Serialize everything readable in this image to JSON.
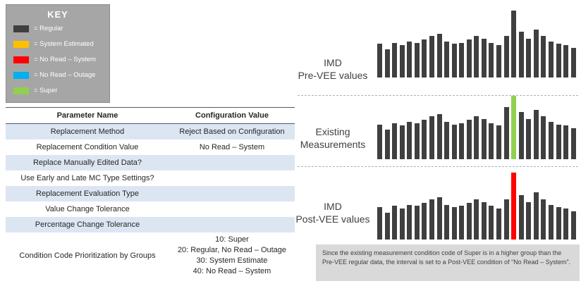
{
  "key": {
    "title": "KEY",
    "items": [
      {
        "label": "= Regular",
        "color": "#3f3f3f"
      },
      {
        "label": "= System Estimated",
        "color": "#ffc000"
      },
      {
        "label": "= No Read – System",
        "color": "#ff0000"
      },
      {
        "label": "= No Read – Outage",
        "color": "#00b0f0"
      },
      {
        "label": "= Super",
        "color": "#92d050"
      }
    ]
  },
  "table": {
    "headers": [
      "Parameter Name",
      "Configuration Value"
    ],
    "rows": [
      {
        "name": "Replacement Method",
        "value": "Reject Based on Configuration"
      },
      {
        "name": "Replacement Condition Value",
        "value": "No Read – System"
      },
      {
        "name": "Replace Manually Edited Data?",
        "value": ""
      },
      {
        "name": "Use Early and Late MC Type Settings?",
        "value": ""
      },
      {
        "name": "Replacement Evaluation Type",
        "value": ""
      },
      {
        "name": "Value Change Tolerance",
        "value": ""
      },
      {
        "name": "Percentage Change Tolerance",
        "value": ""
      },
      {
        "name": "Condition Code Prioritization by Groups",
        "value": "10: Super\n20: Regular, No Read – Outage\n30: System Estimate\n40: No Read – System"
      }
    ]
  },
  "chart_data": [
    {
      "type": "bar",
      "title": "IMD\nPre-VEE values",
      "value_scale": "relative bar height 0-100 (no axis shown)",
      "bar_color": "#3f3f3f",
      "highlight_index": 18,
      "highlight_color": "#3f3f3f",
      "values": [
        50,
        42,
        52,
        48,
        54,
        52,
        57,
        62,
        65,
        54,
        50,
        52,
        57,
        62,
        58,
        52,
        48,
        62,
        100,
        68,
        58,
        72,
        62,
        54,
        50,
        48,
        44
      ]
    },
    {
      "type": "bar",
      "title": "Existing\nMeasurements",
      "value_scale": "relative bar height 0-100 (no axis shown)",
      "bar_color": "#3f3f3f",
      "highlight_index": 18,
      "highlight_color": "#92d050",
      "values": [
        52,
        44,
        54,
        50,
        56,
        54,
        59,
        64,
        67,
        56,
        52,
        54,
        59,
        64,
        60,
        54,
        50,
        78,
        95,
        70,
        60,
        74,
        64,
        56,
        52,
        50,
        46
      ]
    },
    {
      "type": "bar",
      "title": "IMD\nPost-VEE values",
      "value_scale": "relative bar height 0-100 (no axis shown)",
      "bar_color": "#3f3f3f",
      "highlight_index": 18,
      "highlight_color": "#ff0000",
      "values": [
        48,
        40,
        50,
        46,
        52,
        50,
        55,
        60,
        63,
        52,
        48,
        50,
        55,
        60,
        56,
        50,
        46,
        60,
        100,
        66,
        56,
        70,
        60,
        52,
        48,
        46,
        42
      ]
    }
  ],
  "callout": {
    "text": "Since the existing measurement condition code of Super is in a higher group than the Pre-VEE regular data, the interval is set to a Post-VEE condition of “No Read – System”."
  }
}
